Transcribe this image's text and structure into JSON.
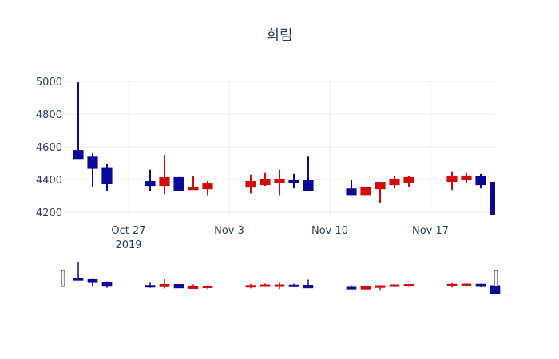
{
  "chart_data": {
    "type": "candlestick",
    "title": "희림",
    "xlabel": "",
    "ylabel": "",
    "ylim": [
      4180,
      5010
    ],
    "yticks": [
      4200,
      4400,
      4600,
      4800,
      5000
    ],
    "xticks": [
      {
        "date": "2019-10-27",
        "label": "Oct 27",
        "sublabel": "2019"
      },
      {
        "date": "2019-11-03",
        "label": "Nov 3"
      },
      {
        "date": "2019-11-10",
        "label": "Nov 10"
      },
      {
        "date": "2019-11-17",
        "label": "Nov 17"
      }
    ],
    "grid": true,
    "increasing_color": "#d10a0a",
    "decreasing_color": "#0a0a96",
    "rangeslider": true,
    "x_range": [
      "2019-10-22T12:00",
      "2019-11-21T12:00"
    ],
    "series": [
      {
        "date": "2019-10-23",
        "open": 4575,
        "high": 4995,
        "low": 4530,
        "close": 4530
      },
      {
        "date": "2019-10-24",
        "open": 4535,
        "high": 4560,
        "low": 4355,
        "close": 4470
      },
      {
        "date": "2019-10-25",
        "open": 4470,
        "high": 4495,
        "low": 4330,
        "close": 4375
      },
      {
        "date": "2019-10-28",
        "open": 4385,
        "high": 4460,
        "low": 4330,
        "close": 4365
      },
      {
        "date": "2019-10-29",
        "open": 4365,
        "high": 4550,
        "low": 4310,
        "close": 4410
      },
      {
        "date": "2019-10-30",
        "open": 4410,
        "high": 4415,
        "low": 4330,
        "close": 4335
      },
      {
        "date": "2019-10-31",
        "open": 4340,
        "high": 4420,
        "low": 4338,
        "close": 4350
      },
      {
        "date": "2019-11-01",
        "open": 4345,
        "high": 4390,
        "low": 4300,
        "close": 4370
      },
      {
        "date": "2019-11-04",
        "open": 4355,
        "high": 4430,
        "low": 4315,
        "close": 4385
      },
      {
        "date": "2019-11-05",
        "open": 4370,
        "high": 4440,
        "low": 4360,
        "close": 4400
      },
      {
        "date": "2019-11-06",
        "open": 4380,
        "high": 4460,
        "low": 4300,
        "close": 4400
      },
      {
        "date": "2019-11-07",
        "open": 4395,
        "high": 4435,
        "low": 4345,
        "close": 4380
      },
      {
        "date": "2019-11-08",
        "open": 4390,
        "high": 4540,
        "low": 4335,
        "close": 4335
      },
      {
        "date": "2019-11-11",
        "open": 4340,
        "high": 4395,
        "low": 4305,
        "close": 4305
      },
      {
        "date": "2019-11-12",
        "open": 4305,
        "high": 4350,
        "low": 4305,
        "close": 4350
      },
      {
        "date": "2019-11-13",
        "open": 4345,
        "high": 4385,
        "low": 4255,
        "close": 4380
      },
      {
        "date": "2019-11-14",
        "open": 4370,
        "high": 4420,
        "low": 4345,
        "close": 4400
      },
      {
        "date": "2019-11-15",
        "open": 4385,
        "high": 4420,
        "low": 4355,
        "close": 4410
      },
      {
        "date": "2019-11-18",
        "open": 4390,
        "high": 4450,
        "low": 4335,
        "close": 4415
      },
      {
        "date": "2019-11-19",
        "open": 4400,
        "high": 4440,
        "low": 4380,
        "close": 4420
      },
      {
        "date": "2019-11-20",
        "open": 4415,
        "high": 4435,
        "low": 4345,
        "close": 4370
      },
      {
        "date": "2019-11-21",
        "open": 4380,
        "high": 4380,
        "low": 4180,
        "close": 4180
      }
    ]
  }
}
